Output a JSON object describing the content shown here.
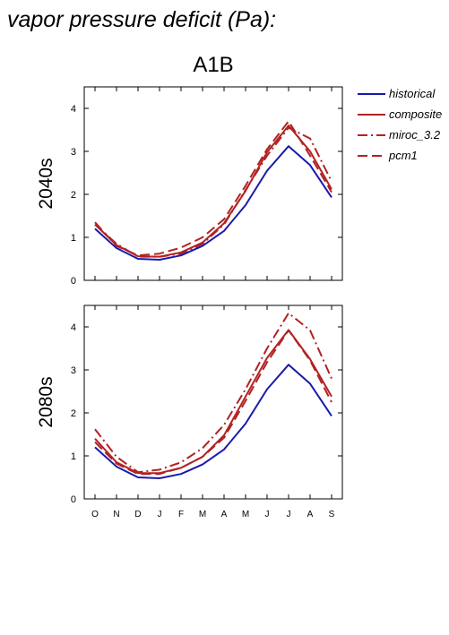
{
  "header": {
    "title": "vapor pressure deficit (Pa):",
    "scenario": "A1B"
  },
  "legend": {
    "placement": "top-right",
    "items": [
      {
        "label": "historical",
        "color": "#1a1aaa",
        "dash": "solid"
      },
      {
        "label": "composite",
        "color": "#b22222",
        "dash": "solid"
      },
      {
        "label": "miroc_3.2",
        "color": "#b22222",
        "dash": "dash-dot"
      },
      {
        "label": "pcm1",
        "color": "#b22222",
        "dash": "dash"
      }
    ]
  },
  "chart_data": [
    {
      "type": "line",
      "title": "A1B",
      "ylabel": "2040s",
      "xlabel": "",
      "categories": [
        "O",
        "N",
        "D",
        "J",
        "F",
        "M",
        "A",
        "M",
        "J",
        "J",
        "A",
        "S"
      ],
      "ylim": [
        0,
        4.5
      ],
      "yticks": [
        0,
        1,
        2,
        3,
        4
      ],
      "grid": false,
      "series": [
        {
          "name": "historical",
          "values": [
            1.2,
            0.75,
            0.5,
            0.48,
            0.58,
            0.8,
            1.15,
            1.75,
            2.55,
            3.12,
            2.68,
            1.93
          ]
        },
        {
          "name": "composite",
          "values": [
            1.3,
            0.82,
            0.56,
            0.55,
            0.65,
            0.88,
            1.33,
            2.08,
            2.98,
            3.6,
            3.0,
            2.12
          ]
        },
        {
          "name": "miroc_3.2",
          "values": [
            1.3,
            0.85,
            0.55,
            0.55,
            0.62,
            0.85,
            1.3,
            2.1,
            2.9,
            3.55,
            3.3,
            2.3
          ]
        },
        {
          "name": "pcm1",
          "values": [
            1.35,
            0.8,
            0.58,
            0.62,
            0.76,
            1.0,
            1.42,
            2.2,
            3.05,
            3.7,
            2.9,
            2.05
          ]
        }
      ]
    },
    {
      "type": "line",
      "ylabel": "2080s",
      "xlabel": "",
      "categories": [
        "O",
        "N",
        "D",
        "J",
        "F",
        "M",
        "A",
        "M",
        "J",
        "J",
        "A",
        "S"
      ],
      "ylim": [
        0,
        4.5
      ],
      "yticks": [
        0,
        1,
        2,
        3,
        4
      ],
      "grid": false,
      "series": [
        {
          "name": "historical",
          "values": [
            1.2,
            0.75,
            0.5,
            0.48,
            0.58,
            0.8,
            1.15,
            1.75,
            2.55,
            3.12,
            2.68,
            1.93
          ]
        },
        {
          "name": "composite",
          "values": [
            1.4,
            0.85,
            0.6,
            0.6,
            0.72,
            0.98,
            1.48,
            2.38,
            3.28,
            3.93,
            3.25,
            2.38
          ]
        },
        {
          "name": "miroc_3.2",
          "values": [
            1.62,
            0.98,
            0.62,
            0.68,
            0.85,
            1.18,
            1.72,
            2.55,
            3.5,
            4.32,
            3.92,
            2.8
          ]
        },
        {
          "name": "pcm1",
          "values": [
            1.32,
            0.82,
            0.58,
            0.58,
            0.72,
            0.98,
            1.42,
            2.28,
            3.18,
            3.92,
            3.22,
            2.25
          ]
        }
      ]
    }
  ]
}
